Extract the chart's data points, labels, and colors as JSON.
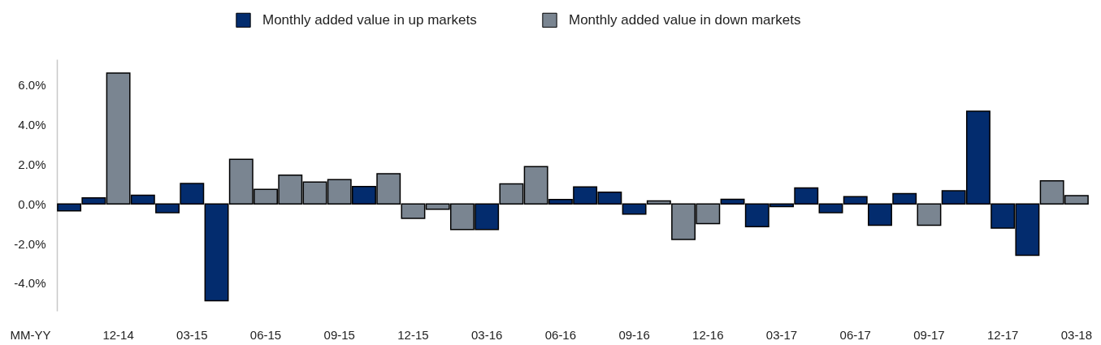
{
  "chart_data": {
    "type": "bar",
    "xlabel": "MM-YY",
    "categories": [
      null,
      null,
      "12-14",
      null,
      null,
      "03-15",
      null,
      null,
      "06-15",
      null,
      null,
      "09-15",
      null,
      null,
      "12-15",
      null,
      null,
      "03-16",
      null,
      null,
      "06-16",
      null,
      null,
      "09-16",
      null,
      null,
      "12-16",
      null,
      null,
      "03-17",
      null,
      null,
      "06-17",
      null,
      null,
      "09-17",
      null,
      null,
      "12-17",
      null,
      null,
      "03-18"
    ],
    "series": [
      {
        "name": "Monthly added value in up markets",
        "color": "#032c6e",
        "values": [
          -0.35,
          0.3,
          null,
          0.44,
          -0.44,
          1.03,
          -4.89,
          null,
          null,
          null,
          null,
          null,
          0.88,
          null,
          null,
          null,
          null,
          -1.29,
          null,
          null,
          0.22,
          0.86,
          0.59,
          -0.51,
          null,
          null,
          null,
          0.23,
          -1.15,
          -0.14,
          0.81,
          -0.44,
          0.37,
          -1.08,
          0.52,
          null,
          0.66,
          4.68,
          -1.22,
          -2.59,
          null,
          null
        ]
      },
      {
        "name": "Monthly added value in down markets",
        "color": "#7a8591",
        "values": [
          null,
          null,
          6.6,
          null,
          null,
          null,
          null,
          2.25,
          0.73,
          1.45,
          1.1,
          1.23,
          null,
          1.52,
          -0.73,
          -0.27,
          -1.29,
          null,
          1.01,
          1.88,
          null,
          null,
          null,
          null,
          0.15,
          -1.79,
          -1.0,
          null,
          null,
          null,
          null,
          null,
          null,
          null,
          null,
          -1.08,
          null,
          null,
          null,
          null,
          1.16,
          0.42
        ]
      }
    ],
    "ylim": [
      -5.4,
      7.3
    ],
    "yticks": [
      {
        "value": -4,
        "label": "-4.0%"
      },
      {
        "value": -2,
        "label": "-2.0%"
      },
      {
        "value": 0,
        "label": "0.0%"
      },
      {
        "value": 2,
        "label": "2.0%"
      },
      {
        "value": 4,
        "label": "4.0%"
      },
      {
        "value": 6,
        "label": "6.0%"
      }
    ],
    "grid": false,
    "legend": "top"
  }
}
